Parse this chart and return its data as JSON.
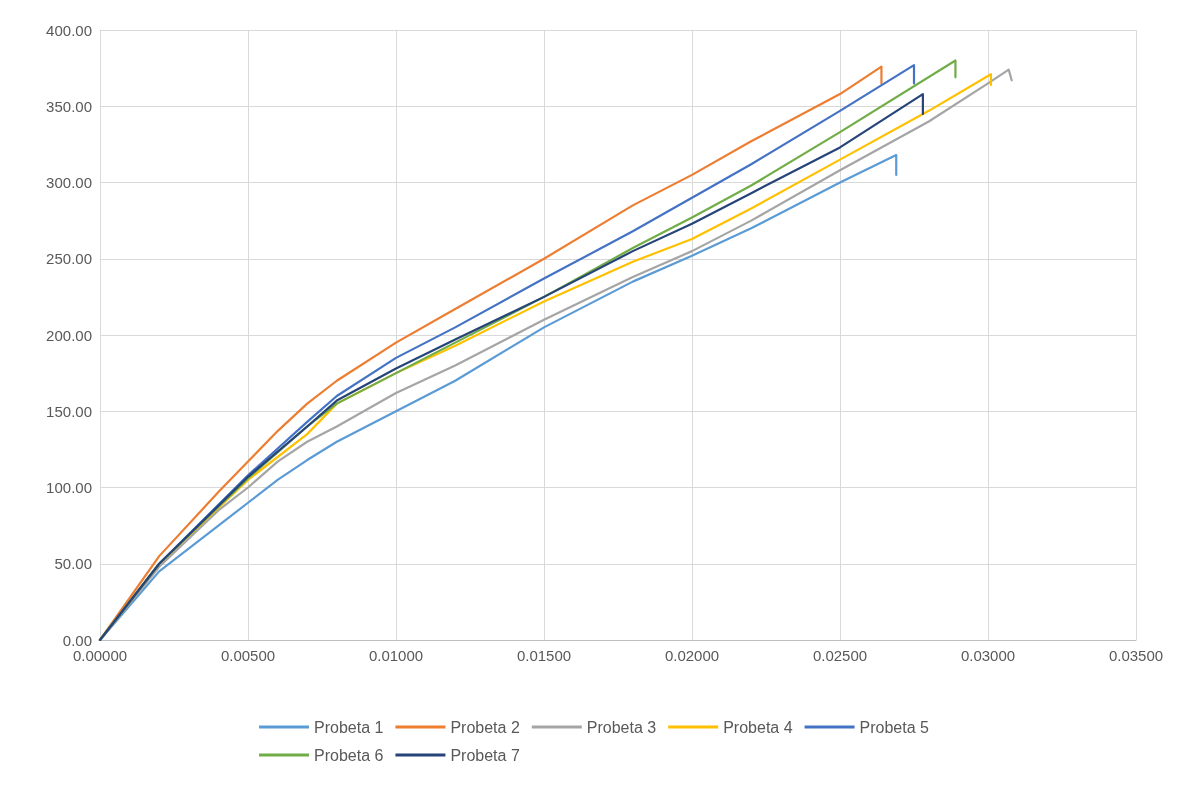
{
  "chart_data": {
    "type": "line",
    "grid": true,
    "legend": "bottom",
    "marker": "none",
    "line_style": "solid",
    "xlim": [
      0,
      0.035
    ],
    "ylim": [
      0,
      400
    ],
    "xticks": [
      {
        "value": 0,
        "label": "0.00000"
      },
      {
        "value": 0.005,
        "label": "0.00500"
      },
      {
        "value": 0.01,
        "label": "0.01000"
      },
      {
        "value": 0.015,
        "label": "0.01500"
      },
      {
        "value": 0.02,
        "label": "0.02000"
      },
      {
        "value": 0.025,
        "label": "0.02500"
      },
      {
        "value": 0.03,
        "label": "0.03000"
      },
      {
        "value": 0.035,
        "label": "0.03500"
      }
    ],
    "yticks": [
      {
        "value": 0,
        "label": "0.00"
      },
      {
        "value": 50,
        "label": "50.00"
      },
      {
        "value": 100,
        "label": "100.00"
      },
      {
        "value": 150,
        "label": "150.00"
      },
      {
        "value": 200,
        "label": "200.00"
      },
      {
        "value": 250,
        "label": "250.00"
      },
      {
        "value": 300,
        "label": "300.00"
      },
      {
        "value": 350,
        "label": "350.00"
      },
      {
        "value": 400,
        "label": "400.00"
      }
    ],
    "series": [
      {
        "name": "Probeta 1",
        "color": "#5b9bd5",
        "x": [
          0,
          0.002,
          0.004,
          0.005,
          0.006,
          0.007,
          0.008,
          0.01,
          0.012,
          0.015,
          0.018,
          0.02,
          0.022,
          0.025,
          0.0269,
          0.0269
        ],
        "values": [
          0,
          45,
          75,
          90,
          105,
          118,
          130,
          150,
          170,
          205,
          235,
          252,
          270,
          300,
          318,
          305
        ]
      },
      {
        "name": "Probeta 2",
        "color": "#ed7d31",
        "x": [
          0,
          0.002,
          0.004,
          0.005,
          0.006,
          0.007,
          0.008,
          0.01,
          0.012,
          0.015,
          0.018,
          0.02,
          0.022,
          0.025,
          0.0264,
          0.0264
        ],
        "values": [
          0,
          55,
          97,
          117,
          137,
          155,
          170,
          195,
          217,
          250,
          285,
          305,
          327,
          358,
          376,
          365
        ]
      },
      {
        "name": "Probeta 3",
        "color": "#a5a5a5",
        "x": [
          0,
          0.002,
          0.004,
          0.005,
          0.006,
          0.007,
          0.008,
          0.01,
          0.012,
          0.015,
          0.018,
          0.02,
          0.022,
          0.025,
          0.028,
          0.03,
          0.0307,
          0.0308
        ],
        "values": [
          0,
          48,
          85,
          100,
          117,
          130,
          140,
          162,
          180,
          210,
          238,
          255,
          275,
          308,
          340,
          365,
          374,
          367
        ]
      },
      {
        "name": "Probeta 4",
        "color": "#ffc000",
        "x": [
          0,
          0.002,
          0.005,
          0.007,
          0.008,
          0.01,
          0.012,
          0.015,
          0.018,
          0.02,
          0.022,
          0.025,
          0.028,
          0.0301,
          0.0301
        ],
        "values": [
          0,
          50,
          105,
          135,
          155,
          175,
          193,
          222,
          248,
          263,
          283,
          315,
          347,
          371,
          364
        ]
      },
      {
        "name": "Probeta 5",
        "color": "#4472c4",
        "x": [
          0,
          0.002,
          0.005,
          0.007,
          0.008,
          0.01,
          0.012,
          0.015,
          0.018,
          0.02,
          0.022,
          0.025,
          0.0275,
          0.0275
        ],
        "values": [
          0,
          50,
          108,
          143,
          160,
          185,
          205,
          237,
          268,
          290,
          312,
          347,
          377,
          365
        ]
      },
      {
        "name": "Probeta 6",
        "color": "#70ad47",
        "x": [
          0,
          0.002,
          0.005,
          0.007,
          0.008,
          0.01,
          0.012,
          0.015,
          0.018,
          0.02,
          0.022,
          0.025,
          0.0289,
          0.0289
        ],
        "values": [
          0,
          50,
          106,
          140,
          155,
          175,
          195,
          225,
          257,
          277,
          298,
          333,
          380,
          369
        ]
      },
      {
        "name": "Probeta 7",
        "color": "#264478",
        "x": [
          0,
          0.002,
          0.005,
          0.007,
          0.008,
          0.01,
          0.012,
          0.015,
          0.018,
          0.02,
          0.022,
          0.025,
          0.0278,
          0.0278
        ],
        "values": [
          0,
          50,
          107,
          140,
          157,
          178,
          197,
          225,
          255,
          273,
          293,
          323,
          358,
          345
        ]
      }
    ]
  }
}
